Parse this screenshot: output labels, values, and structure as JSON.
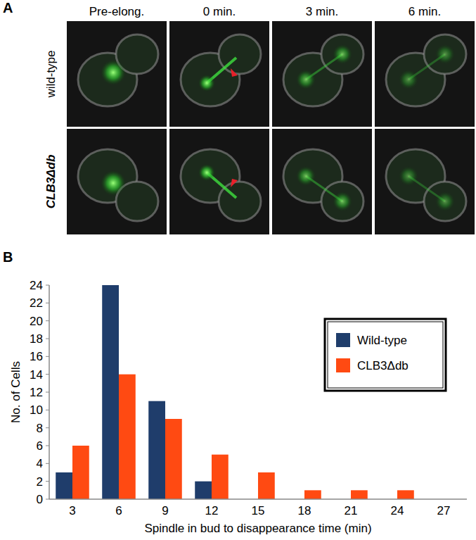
{
  "panel_a": {
    "label": "A",
    "columns": [
      "Pre-elong.",
      "0 min.",
      "3 min.",
      "6 min."
    ],
    "rows": [
      "wild-type",
      "CLB3Δdb"
    ]
  },
  "chart_data": {
    "type": "bar",
    "panel_label": "B",
    "x_label": "Spindle in bud to disappearance time (min)",
    "y_label": "No. of Cells",
    "categories": [
      "3",
      "6",
      "9",
      "12",
      "15",
      "18",
      "21",
      "24",
      "27"
    ],
    "series": [
      {
        "name": "Wild-type",
        "color": "#1f3d6b",
        "values": [
          3,
          24,
          11,
          2,
          0,
          0,
          0,
          0,
          0
        ]
      },
      {
        "name": "CLB3Δdb",
        "color": "#ff4a12",
        "values": [
          6,
          14,
          9,
          5,
          3,
          1,
          1,
          1,
          0
        ]
      }
    ],
    "ylim": [
      0,
      24
    ],
    "yticks": [
      0,
      2,
      4,
      6,
      8,
      10,
      12,
      14,
      16,
      18,
      20,
      22,
      24
    ],
    "grid": false,
    "legend": "upper-right"
  }
}
